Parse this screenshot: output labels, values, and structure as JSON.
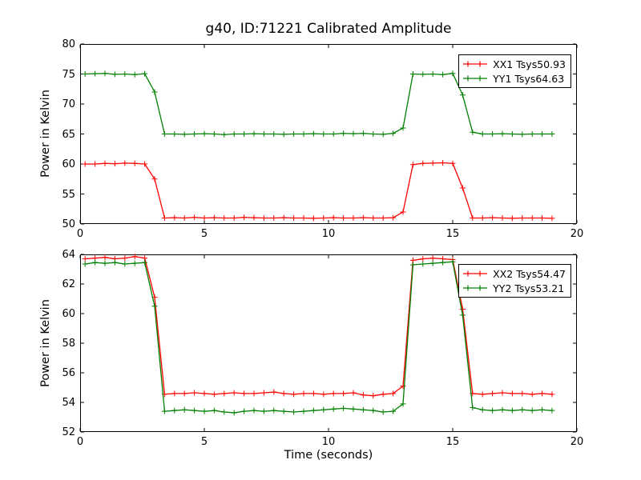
{
  "figure": {
    "title": "g40, ID:71221 Calibrated Amplitude",
    "background_color": "#ffffff",
    "frame_color": "#000000"
  },
  "chart_data": [
    {
      "type": "line",
      "ylabel": "Power in Kelvin",
      "xlabel": "",
      "ylim": [
        50,
        80
      ],
      "yticks": [
        50,
        55,
        60,
        65,
        70,
        75,
        80
      ],
      "xlim": [
        0,
        20
      ],
      "xticks": [
        0,
        5,
        10,
        15,
        20
      ],
      "grid": false,
      "legend_position": "upper right",
      "x": [
        0.2,
        0.6,
        1.0,
        1.4,
        1.8,
        2.2,
        2.6,
        3.0,
        3.4,
        3.8,
        4.2,
        4.6,
        5.0,
        5.4,
        5.8,
        6.2,
        6.6,
        7.0,
        7.4,
        7.8,
        8.2,
        8.6,
        9.0,
        9.4,
        9.8,
        10.2,
        10.6,
        11.0,
        11.4,
        11.8,
        12.2,
        12.6,
        13.0,
        13.4,
        13.8,
        14.2,
        14.6,
        15.0,
        15.4,
        15.8,
        16.2,
        16.6,
        17.0,
        17.4,
        17.8,
        18.2,
        18.6,
        19.0
      ],
      "series": [
        {
          "name": "XX1 Tsys50.93",
          "color": "#ff0000",
          "marker": "+",
          "values": [
            60.0,
            60.0,
            60.1,
            60.05,
            60.15,
            60.1,
            60.0,
            57.5,
            51.0,
            51.05,
            51.0,
            51.1,
            51.0,
            51.05,
            51.0,
            51.0,
            51.1,
            51.05,
            51.0,
            51.0,
            51.05,
            51.0,
            51.0,
            50.95,
            51.0,
            51.05,
            51.0,
            51.0,
            51.05,
            51.0,
            51.0,
            51.05,
            52.0,
            59.9,
            60.1,
            60.15,
            60.2,
            60.1,
            56.0,
            51.0,
            51.0,
            51.05,
            51.0,
            50.95,
            51.0,
            51.0,
            51.0,
            50.95
          ]
        },
        {
          "name": "YY1 Tsys64.63",
          "color": "#007f00",
          "marker": "+",
          "values": [
            75.0,
            75.05,
            75.1,
            74.95,
            75.0,
            74.9,
            75.05,
            72.0,
            65.0,
            65.0,
            64.95,
            65.0,
            65.05,
            65.0,
            64.9,
            65.0,
            65.0,
            65.05,
            65.0,
            65.0,
            64.95,
            65.0,
            65.0,
            65.05,
            65.0,
            65.0,
            65.1,
            65.05,
            65.1,
            65.0,
            64.95,
            65.1,
            66.0,
            75.0,
            74.95,
            75.0,
            74.9,
            75.1,
            71.5,
            65.3,
            65.0,
            65.0,
            65.05,
            65.0,
            64.95,
            65.0,
            65.0,
            65.0
          ]
        }
      ]
    },
    {
      "type": "line",
      "ylabel": "Power in Kelvin",
      "xlabel": "Time (seconds)",
      "ylim": [
        52,
        64
      ],
      "yticks": [
        52,
        54,
        56,
        58,
        60,
        62,
        64
      ],
      "xlim": [
        0,
        20
      ],
      "xticks": [
        0,
        5,
        10,
        15,
        20
      ],
      "grid": false,
      "legend_position": "upper right",
      "x": [
        0.2,
        0.6,
        1.0,
        1.4,
        1.8,
        2.2,
        2.6,
        3.0,
        3.4,
        3.8,
        4.2,
        4.6,
        5.0,
        5.4,
        5.8,
        6.2,
        6.6,
        7.0,
        7.4,
        7.8,
        8.2,
        8.6,
        9.0,
        9.4,
        9.8,
        10.2,
        10.6,
        11.0,
        11.4,
        11.8,
        12.2,
        12.6,
        13.0,
        13.4,
        13.8,
        14.2,
        14.6,
        15.0,
        15.4,
        15.8,
        16.2,
        16.6,
        17.0,
        17.4,
        17.8,
        18.2,
        18.6,
        19.0
      ],
      "series": [
        {
          "name": "XX2 Tsys54.47",
          "color": "#ff0000",
          "marker": "+",
          "values": [
            63.7,
            63.75,
            63.8,
            63.7,
            63.75,
            63.85,
            63.75,
            61.1,
            54.55,
            54.6,
            54.6,
            54.65,
            54.6,
            54.55,
            54.6,
            54.65,
            54.6,
            54.6,
            54.65,
            54.7,
            54.6,
            54.55,
            54.6,
            54.6,
            54.55,
            54.6,
            54.6,
            54.65,
            54.5,
            54.45,
            54.55,
            54.6,
            55.1,
            63.6,
            63.7,
            63.75,
            63.7,
            63.65,
            60.3,
            54.6,
            54.55,
            54.6,
            54.65,
            54.6,
            54.6,
            54.55,
            54.6,
            54.55
          ]
        },
        {
          "name": "YY2 Tsys53.21",
          "color": "#007f00",
          "marker": "+",
          "values": [
            63.35,
            63.45,
            63.4,
            63.45,
            63.35,
            63.4,
            63.45,
            60.5,
            53.4,
            53.45,
            53.5,
            53.45,
            53.4,
            53.45,
            53.35,
            53.3,
            53.4,
            53.45,
            53.4,
            53.45,
            53.4,
            53.35,
            53.4,
            53.45,
            53.5,
            53.55,
            53.6,
            53.55,
            53.5,
            53.45,
            53.35,
            53.4,
            53.9,
            63.3,
            63.35,
            63.4,
            63.45,
            63.5,
            59.9,
            53.65,
            53.5,
            53.45,
            53.5,
            53.45,
            53.5,
            53.45,
            53.5,
            53.45
          ]
        }
      ]
    }
  ]
}
